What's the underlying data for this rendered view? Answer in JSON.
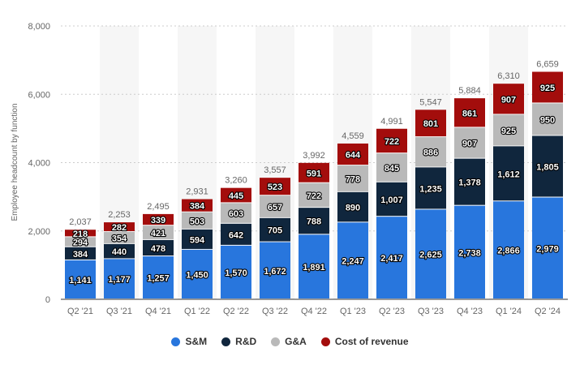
{
  "chart_data": {
    "type": "bar",
    "stacked": true,
    "title": "",
    "xlabel": "",
    "ylabel": "Employee headcount by function",
    "ylim": [
      0,
      8000
    ],
    "yticks": [
      "0",
      "2,000",
      "4,000",
      "6,000",
      "8,000"
    ],
    "categories": [
      "Q2 '21",
      "Q3 '21",
      "Q4 '21",
      "Q1 '22",
      "Q2 '22",
      "Q3 '22",
      "Q4 '22",
      "Q1 '23",
      "Q2 '23",
      "Q3 '23",
      "Q4 '23",
      "Q1 '24",
      "Q2 '24"
    ],
    "series": [
      {
        "name": "S&M",
        "color": "#2876dd",
        "values": [
          1141,
          1177,
          1257,
          1450,
          1570,
          1672,
          1891,
          2247,
          2417,
          2625,
          2738,
          2866,
          2979
        ]
      },
      {
        "name": "R&D",
        "color": "#10263d",
        "values": [
          384,
          440,
          478,
          594,
          642,
          705,
          788,
          890,
          1007,
          1235,
          1378,
          1612,
          1805
        ]
      },
      {
        "name": "G&A",
        "color": "#b9b9b9",
        "values": [
          294,
          354,
          421,
          503,
          603,
          657,
          722,
          778,
          845,
          886,
          907,
          925,
          950
        ]
      },
      {
        "name": "Cost of revenue",
        "color": "#a30d0c",
        "values": [
          218,
          282,
          339,
          384,
          445,
          523,
          591,
          644,
          722,
          801,
          861,
          907,
          925
        ]
      }
    ],
    "totals": [
      "2,037",
      "2,253",
      "2,495",
      "2,931",
      "3,260",
      "3,557",
      "3,992",
      "4,559",
      "4,991",
      "5,547",
      "5,884",
      "6,310",
      "6,659"
    ],
    "legend_position": "bottom-center",
    "grid": true
  }
}
